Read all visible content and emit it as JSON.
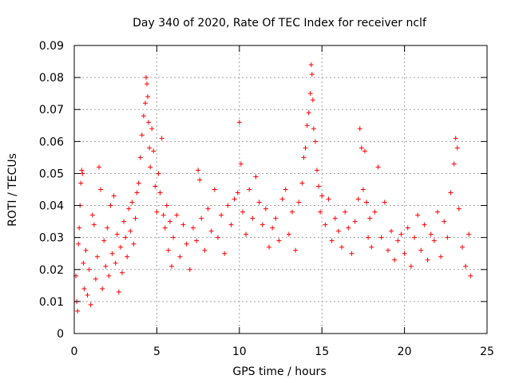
{
  "chart_data": {
    "type": "scatter",
    "title": "Day 340 of 2020, Rate Of TEC Index for receiver nclf",
    "xlabel": "GPS time / hours",
    "ylabel": "ROTI / TECUs",
    "xlim": [
      0,
      25
    ],
    "ylim": [
      0,
      0.09
    ],
    "xticks": [
      0,
      5,
      10,
      15,
      20,
      25
    ],
    "xtick_labels": [
      "0",
      "5",
      "10",
      "15",
      "20",
      "25"
    ],
    "yticks": [
      0,
      0.01,
      0.02,
      0.03,
      0.04,
      0.05,
      0.06,
      0.07,
      0.08,
      0.09
    ],
    "ytick_labels": [
      "0",
      "0.01",
      "0.02",
      "0.03",
      "0.04",
      "0.05",
      "0.06",
      "0.07",
      "0.08",
      "0.09"
    ],
    "grid": true,
    "marker": "+",
    "color": "#ff0000",
    "series": [
      {
        "points": [
          [
            0.1,
            0.018
          ],
          [
            0.15,
            0.01
          ],
          [
            0.2,
            0.007
          ],
          [
            0.25,
            0.028
          ],
          [
            0.3,
            0.033
          ],
          [
            0.35,
            0.04
          ],
          [
            0.4,
            0.047
          ],
          [
            0.45,
            0.051
          ],
          [
            0.5,
            0.05
          ],
          [
            0.55,
            0.022
          ],
          [
            0.6,
            0.014
          ],
          [
            0.7,
            0.026
          ],
          [
            0.8,
            0.012
          ],
          [
            0.9,
            0.02
          ],
          [
            1.0,
            0.009
          ],
          [
            1.1,
            0.037
          ],
          [
            1.2,
            0.034
          ],
          [
            1.3,
            0.017
          ],
          [
            1.4,
            0.024
          ],
          [
            1.5,
            0.052
          ],
          [
            1.6,
            0.045
          ],
          [
            1.7,
            0.014
          ],
          [
            1.8,
            0.029
          ],
          [
            1.9,
            0.021
          ],
          [
            2.0,
            0.033
          ],
          [
            2.1,
            0.018
          ],
          [
            2.2,
            0.04
          ],
          [
            2.3,
            0.025
          ],
          [
            2.4,
            0.043
          ],
          [
            2.5,
            0.022
          ],
          [
            2.6,
            0.031
          ],
          [
            2.7,
            0.013
          ],
          [
            2.8,
            0.027
          ],
          [
            2.9,
            0.019
          ],
          [
            3.0,
            0.035
          ],
          [
            3.1,
            0.03
          ],
          [
            3.2,
            0.024
          ],
          [
            3.3,
            0.039
          ],
          [
            3.4,
            0.032
          ],
          [
            3.5,
            0.041
          ],
          [
            3.6,
            0.028
          ],
          [
            3.7,
            0.036
          ],
          [
            3.8,
            0.044
          ],
          [
            3.9,
            0.047
          ],
          [
            4.0,
            0.055
          ],
          [
            4.1,
            0.062
          ],
          [
            4.2,
            0.068
          ],
          [
            4.3,
            0.072
          ],
          [
            4.35,
            0.08
          ],
          [
            4.4,
            0.078
          ],
          [
            4.45,
            0.074
          ],
          [
            4.5,
            0.066
          ],
          [
            4.55,
            0.058
          ],
          [
            4.6,
            0.052
          ],
          [
            4.7,
            0.064
          ],
          [
            4.8,
            0.057
          ],
          [
            4.9,
            0.046
          ],
          [
            5.0,
            0.038
          ],
          [
            5.1,
            0.05
          ],
          [
            5.2,
            0.044
          ],
          [
            5.3,
            0.061
          ],
          [
            5.4,
            0.037
          ],
          [
            5.5,
            0.033
          ],
          [
            5.6,
            0.04
          ],
          [
            5.7,
            0.026
          ],
          [
            5.8,
            0.035
          ],
          [
            5.9,
            0.021
          ],
          [
            6.0,
            0.03
          ],
          [
            6.2,
            0.037
          ],
          [
            6.4,
            0.024
          ],
          [
            6.6,
            0.034
          ],
          [
            6.8,
            0.028
          ],
          [
            7.0,
            0.02
          ],
          [
            7.2,
            0.033
          ],
          [
            7.4,
            0.029
          ],
          [
            7.5,
            0.051
          ],
          [
            7.6,
            0.048
          ],
          [
            7.7,
            0.036
          ],
          [
            7.9,
            0.026
          ],
          [
            8.1,
            0.039
          ],
          [
            8.3,
            0.032
          ],
          [
            8.5,
            0.045
          ],
          [
            8.7,
            0.03
          ],
          [
            8.9,
            0.037
          ],
          [
            9.1,
            0.025
          ],
          [
            9.3,
            0.04
          ],
          [
            9.5,
            0.034
          ],
          [
            9.7,
            0.042
          ],
          [
            9.9,
            0.044
          ],
          [
            10.0,
            0.066
          ],
          [
            10.1,
            0.053
          ],
          [
            10.2,
            0.038
          ],
          [
            10.4,
            0.031
          ],
          [
            10.6,
            0.045
          ],
          [
            10.8,
            0.036
          ],
          [
            11.0,
            0.049
          ],
          [
            11.2,
            0.041
          ],
          [
            11.4,
            0.034
          ],
          [
            11.6,
            0.039
          ],
          [
            11.8,
            0.027
          ],
          [
            12.0,
            0.033
          ],
          [
            12.2,
            0.036
          ],
          [
            12.4,
            0.029
          ],
          [
            12.6,
            0.042
          ],
          [
            12.8,
            0.045
          ],
          [
            13.0,
            0.031
          ],
          [
            13.2,
            0.038
          ],
          [
            13.4,
            0.026
          ],
          [
            13.6,
            0.041
          ],
          [
            13.8,
            0.047
          ],
          [
            13.9,
            0.055
          ],
          [
            14.0,
            0.058
          ],
          [
            14.1,
            0.065
          ],
          [
            14.2,
            0.069
          ],
          [
            14.3,
            0.075
          ],
          [
            14.35,
            0.084
          ],
          [
            14.4,
            0.081
          ],
          [
            14.45,
            0.073
          ],
          [
            14.5,
            0.064
          ],
          [
            14.6,
            0.06
          ],
          [
            14.7,
            0.051
          ],
          [
            14.8,
            0.046
          ],
          [
            14.9,
            0.038
          ],
          [
            15.0,
            0.043
          ],
          [
            15.2,
            0.034
          ],
          [
            15.4,
            0.042
          ],
          [
            15.6,
            0.029
          ],
          [
            15.8,
            0.036
          ],
          [
            16.0,
            0.032
          ],
          [
            16.2,
            0.027
          ],
          [
            16.4,
            0.038
          ],
          [
            16.6,
            0.033
          ],
          [
            16.8,
            0.025
          ],
          [
            17.0,
            0.035
          ],
          [
            17.2,
            0.042
          ],
          [
            17.3,
            0.064
          ],
          [
            17.4,
            0.058
          ],
          [
            17.5,
            0.045
          ],
          [
            17.6,
            0.057
          ],
          [
            17.7,
            0.041
          ],
          [
            17.8,
            0.03
          ],
          [
            17.9,
            0.036
          ],
          [
            18.0,
            0.027
          ],
          [
            18.2,
            0.038
          ],
          [
            18.4,
            0.052
          ],
          [
            18.6,
            0.03
          ],
          [
            18.8,
            0.041
          ],
          [
            19.0,
            0.026
          ],
          [
            19.2,
            0.032
          ],
          [
            19.4,
            0.023
          ],
          [
            19.6,
            0.029
          ],
          [
            19.8,
            0.031
          ],
          [
            20.0,
            0.025
          ],
          [
            20.2,
            0.033
          ],
          [
            20.4,
            0.021
          ],
          [
            20.6,
            0.03
          ],
          [
            20.8,
            0.037
          ],
          [
            21.0,
            0.026
          ],
          [
            21.2,
            0.034
          ],
          [
            21.4,
            0.023
          ],
          [
            21.6,
            0.031
          ],
          [
            21.8,
            0.029
          ],
          [
            22.0,
            0.038
          ],
          [
            22.2,
            0.024
          ],
          [
            22.4,
            0.035
          ],
          [
            22.6,
            0.03
          ],
          [
            22.8,
            0.044
          ],
          [
            23.0,
            0.053
          ],
          [
            23.1,
            0.061
          ],
          [
            23.2,
            0.058
          ],
          [
            23.3,
            0.039
          ],
          [
            23.5,
            0.027
          ],
          [
            23.7,
            0.021
          ],
          [
            23.9,
            0.031
          ],
          [
            24.0,
            0.018
          ]
        ]
      }
    ]
  }
}
